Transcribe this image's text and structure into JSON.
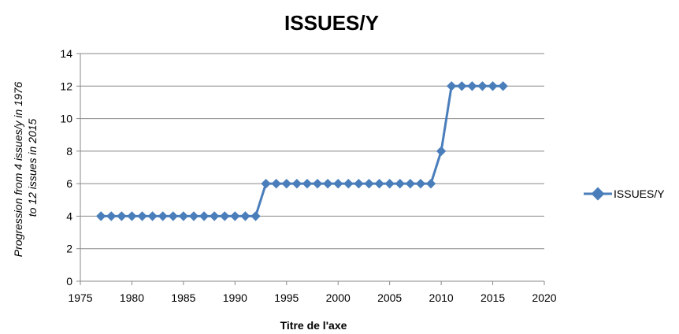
{
  "chart_data": {
    "type": "line",
    "title": "ISSUES/Y",
    "xlabel": "Titre de l'axe",
    "ylabel_lines": [
      "Progression from 4 issues/y in 1976",
      "to 12 issues in 2015"
    ],
    "xlim": [
      1975,
      2020
    ],
    "ylim": [
      0,
      14
    ],
    "x_ticks": [
      "1975",
      "1980",
      "1985",
      "1990",
      "1995",
      "2000",
      "2005",
      "2010",
      "2015",
      "2020"
    ],
    "y_ticks": [
      "0",
      "2",
      "4",
      "6",
      "8",
      "10",
      "12",
      "14"
    ],
    "grid": "horizontal",
    "legend_position": "right",
    "series": [
      {
        "name": "ISSUES/Y",
        "color": "#4a7ebb",
        "marker": "diamond",
        "x": [
          1977,
          1978,
          1979,
          1980,
          1981,
          1982,
          1983,
          1984,
          1985,
          1986,
          1987,
          1988,
          1989,
          1990,
          1991,
          1992,
          1993,
          1994,
          1995,
          1996,
          1997,
          1998,
          1999,
          2000,
          2001,
          2002,
          2003,
          2004,
          2005,
          2006,
          2007,
          2008,
          2009,
          2010,
          2011,
          2012,
          2013,
          2014,
          2015,
          2016
        ],
        "values": [
          4,
          4,
          4,
          4,
          4,
          4,
          4,
          4,
          4,
          4,
          4,
          4,
          4,
          4,
          4,
          4,
          6,
          6,
          6,
          6,
          6,
          6,
          6,
          6,
          6,
          6,
          6,
          6,
          6,
          6,
          6,
          6,
          6,
          8,
          12,
          12,
          12,
          12,
          12,
          12
        ]
      }
    ]
  }
}
